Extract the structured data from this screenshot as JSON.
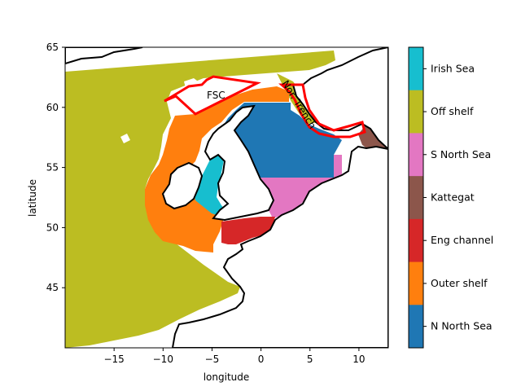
{
  "map": {
    "xlabel": "longitude",
    "ylabel": "latitude",
    "xlim": [
      -20,
      13
    ],
    "ylim": [
      40,
      65
    ],
    "x_ticks": [
      -15,
      -10,
      -5,
      0,
      5,
      10
    ],
    "x_tick_labels": [
      "−15",
      "−10",
      "−5",
      "0",
      "5",
      "10"
    ],
    "y_ticks": [
      45,
      50,
      55,
      60,
      65
    ],
    "y_tick_labels": [
      "45",
      "50",
      "55",
      "60",
      "65"
    ],
    "annotations": {
      "fsc": "FSC",
      "nor_trench": "Nor. Trench"
    },
    "region_outline_color": "#ff0000",
    "coastline_color": "#000000"
  },
  "legend": {
    "items": [
      {
        "label": "Irish Sea",
        "color": "#17becf"
      },
      {
        "label": "Off shelf",
        "color": "#bcbd22"
      },
      {
        "label": "S North Sea",
        "color": "#e377c2"
      },
      {
        "label": "Kattegat",
        "color": "#8c564b"
      },
      {
        "label": "Eng channel",
        "color": "#d62728"
      },
      {
        "label": "Outer shelf",
        "color": "#ff7f0e"
      },
      {
        "label": "N North Sea",
        "color": "#1f77b4"
      }
    ]
  }
}
